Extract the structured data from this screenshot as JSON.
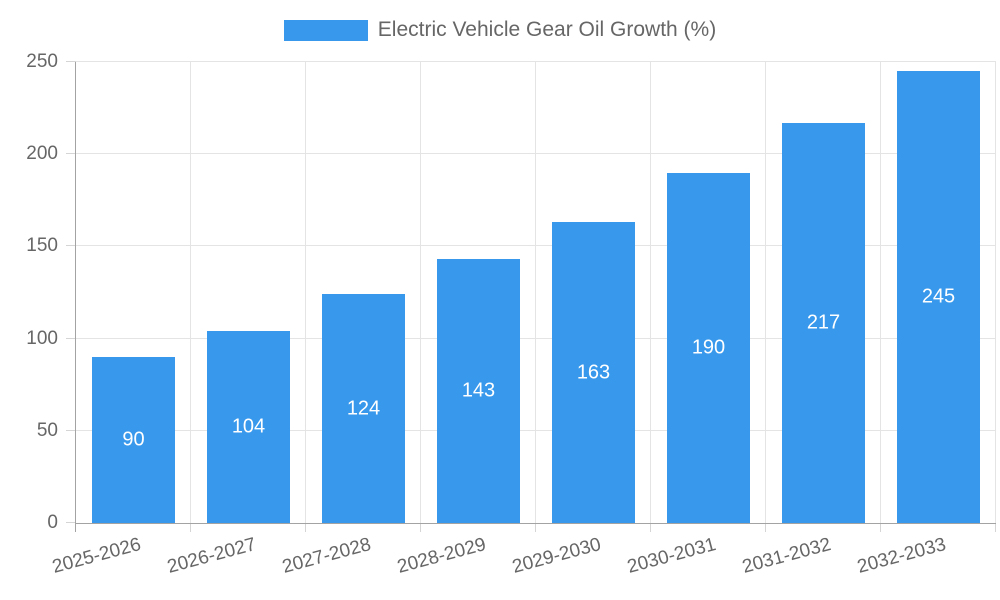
{
  "legend": {
    "label": "Electric Vehicle Gear Oil Growth (%)"
  },
  "colors": {
    "bar": "#3899EC",
    "grid": "#E4E4E4",
    "tick": "#D5D5D5",
    "axis": "#A3A3A3",
    "tick_text": "#666666",
    "value_text": "#FFFFFF"
  },
  "chart_data": {
    "type": "bar",
    "title": "Electric Vehicle Gear Oil Growth (%)",
    "categories": [
      "2025-2026",
      "2026-2027",
      "2027-2028",
      "2028-2029",
      "2029-2030",
      "2030-2031",
      "2031-2032",
      "2032-2033"
    ],
    "series": [
      {
        "name": "Electric Vehicle Gear Oil Growth (%)",
        "values": [
          90,
          104,
          124,
          143,
          163,
          190,
          217,
          245
        ]
      }
    ],
    "xlabel": "",
    "ylabel": "",
    "ylim": [
      0,
      250
    ],
    "yticks": [
      0,
      50,
      100,
      150,
      200,
      250
    ],
    "grid": true,
    "legend_position": "top",
    "value_labels_inside_bars": true,
    "x_label_rotation_deg": -15
  }
}
